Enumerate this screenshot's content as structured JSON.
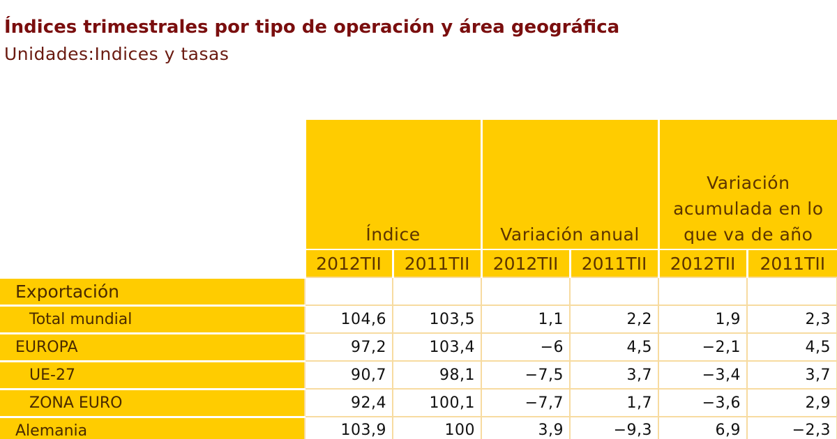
{
  "header": {
    "title": "Índices trimestrales por tipo de operación y área geográfica",
    "subtitle": "Unidades:Indices y tasas"
  },
  "table": {
    "groups": [
      "Índice",
      "Variación anual",
      "Variación acumulada en lo que va de año"
    ],
    "subheaders": [
      "2012TII",
      "2011TII",
      "2012TII",
      "2011TII",
      "2012TII",
      "2011TII"
    ],
    "rows": [
      {
        "label": "Exportación",
        "values": [
          "",
          "",
          "",
          "",
          "",
          ""
        ]
      },
      {
        "label": "Total mundial",
        "values": [
          "104,6",
          "103,5",
          "1,1",
          "2,2",
          "1,9",
          "2,3"
        ]
      },
      {
        "label": "EUROPA",
        "values": [
          "97,2",
          "103,4",
          "−6",
          "4,5",
          "−2,1",
          "4,5"
        ]
      },
      {
        "label": "UE-27",
        "values": [
          "90,7",
          "98,1",
          "−7,5",
          "3,7",
          "−3,4",
          "3,7"
        ]
      },
      {
        "label": "ZONA EURO",
        "values": [
          "92,4",
          "100,1",
          "−7,7",
          "1,7",
          "−3,6",
          "2,9"
        ]
      },
      {
        "label": "Alemania",
        "values": [
          "103,9",
          "100",
          "3,9",
          "−9,3",
          "6,9",
          "−2,3"
        ]
      }
    ]
  }
}
